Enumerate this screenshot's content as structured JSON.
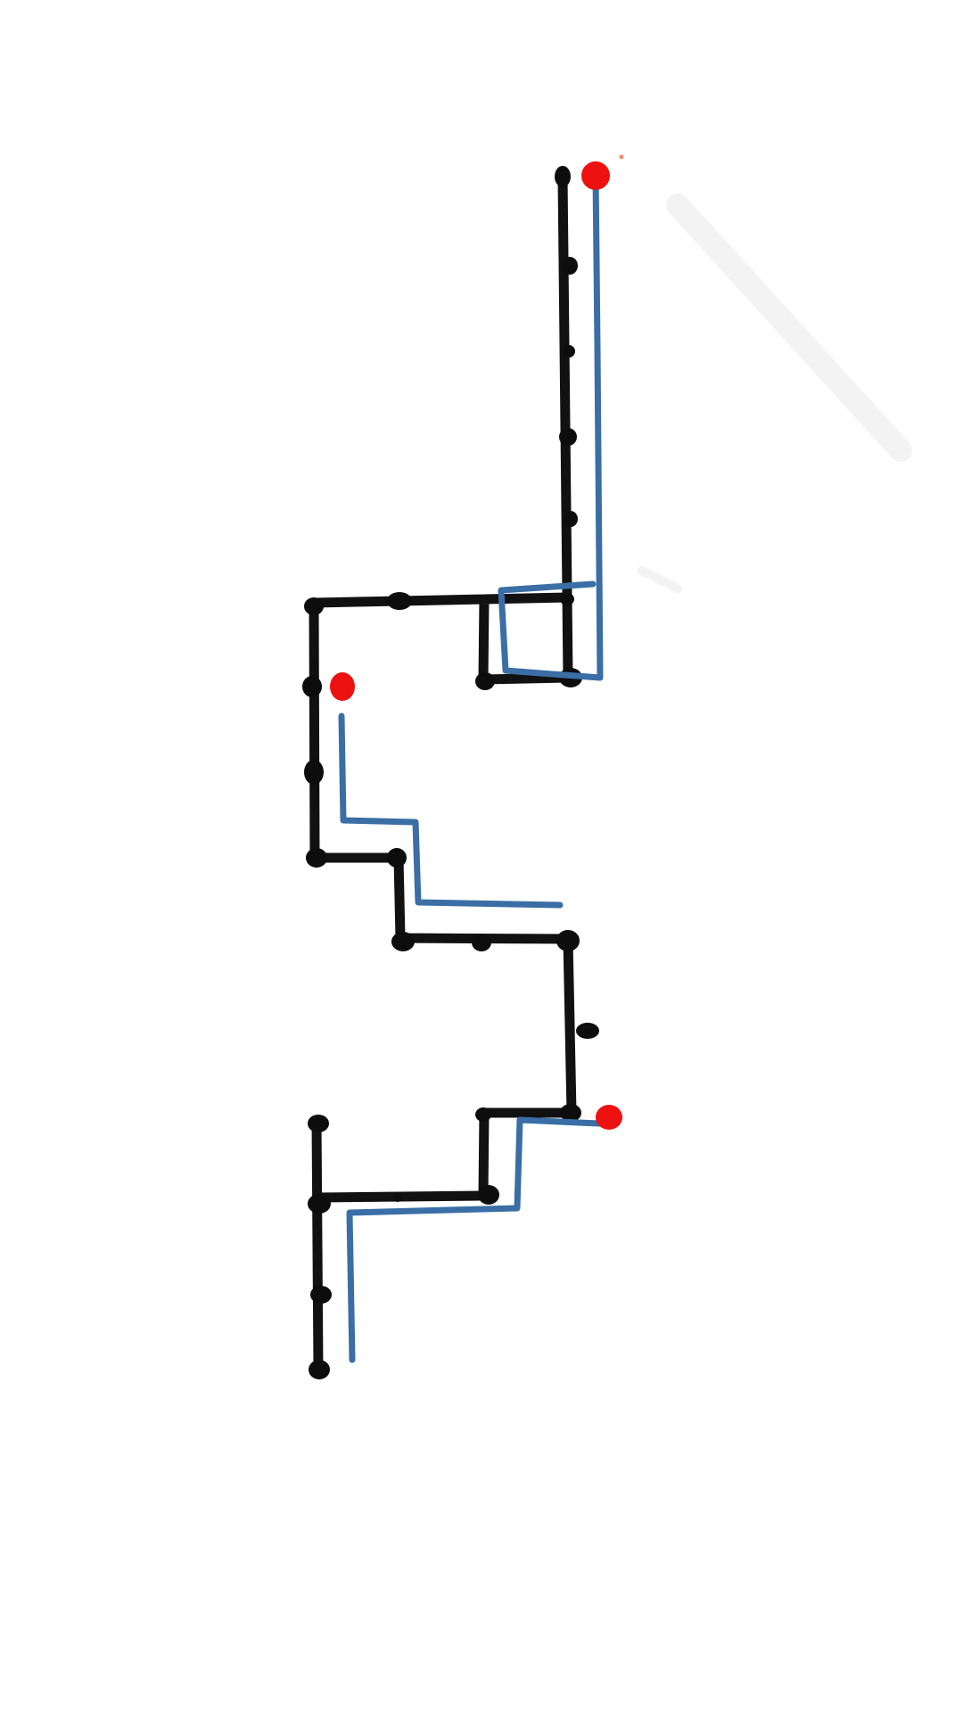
{
  "diagram": {
    "colors": {
      "background": "#ffffff",
      "black_path": "#111111",
      "black_node": "#0d0d0d",
      "blue_path": "#3a6ea5",
      "red_marker": "#ee1111"
    },
    "elements": {
      "black_path": "black-path",
      "blue_path_1": "blue-path-1",
      "blue_path_2": "blue-path-2",
      "blue_path_3": "blue-path-3",
      "red_marker": "red-marker"
    }
  }
}
